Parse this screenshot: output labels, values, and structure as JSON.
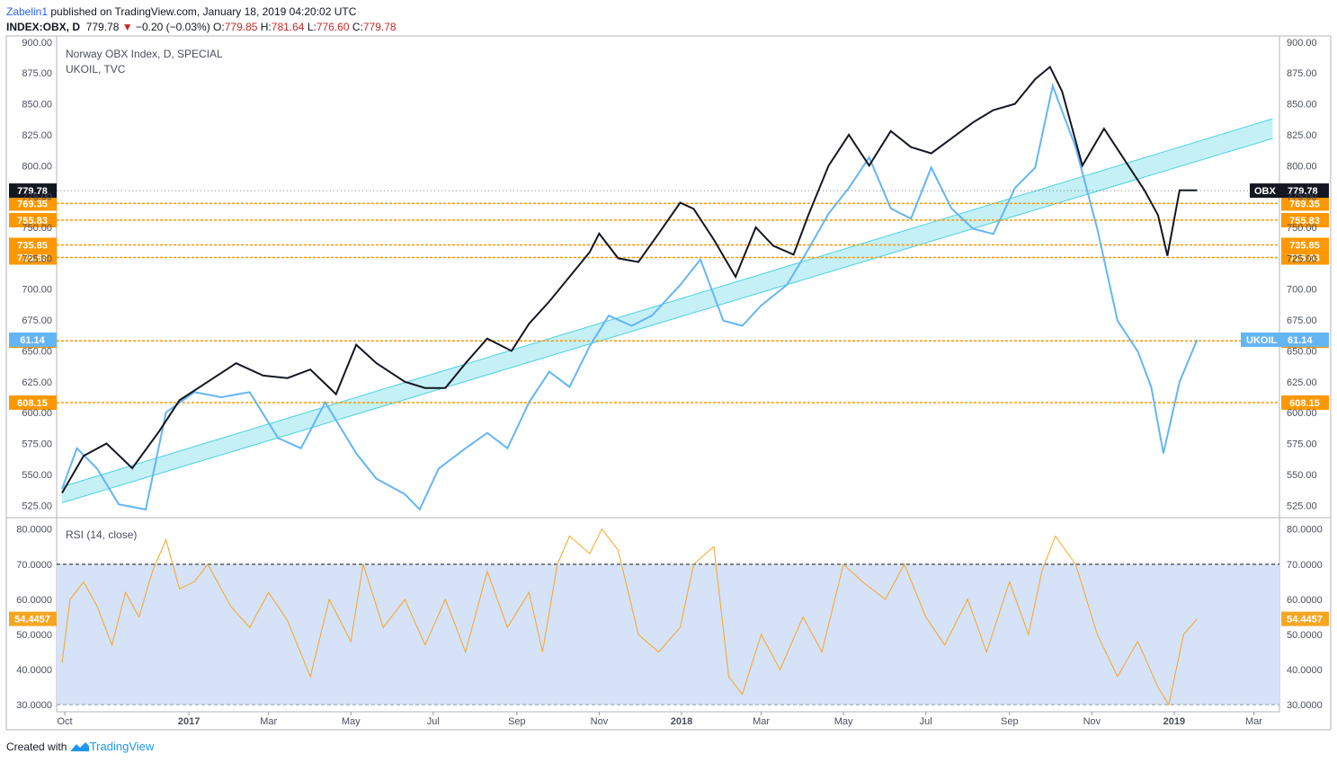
{
  "header": {
    "user": "Zabelin1",
    "published_text": "published on TradingView.com, January 18, 2019 04:20:02 UTC",
    "symbol": "INDEX:OBX, D",
    "last": "779.78",
    "change_arrow": "▼",
    "change": "−0.20 (−0.03%)",
    "o_label": "O:",
    "o_value": "779.85",
    "h_label": "H:",
    "h_value": "781.64",
    "l_label": "L:",
    "l_value": "776.60",
    "c_label": "C:",
    "c_value": "779.78"
  },
  "footer": {
    "created_with": "Created with",
    "brand": "TradingView",
    "logo_icon": "tradingview-logo-icon"
  },
  "colors": {
    "obx": "#131722",
    "obx_down": "#1a237e",
    "ukoil": "#64b5f6",
    "channel": "#4dd0e1",
    "channel_fill": "#b2ebf2",
    "levels": "#ff9800",
    "rsi": "#f5a623",
    "rsi_band": "#d6e2f7"
  },
  "chart_data": [
    {
      "type": "line",
      "title": "Norway OBX Index, D, SPECIAL",
      "subtitle": "UKOIL, TVC",
      "y_range": [
        515,
        905
      ],
      "y_ticks": [
        "525.00",
        "550.00",
        "575.00",
        "600.00",
        "625.00",
        "650.00",
        "675.00",
        "700.00",
        "725.00",
        "750.00",
        "775.00",
        "800.00",
        "825.00",
        "850.00",
        "875.00",
        "900.00"
      ],
      "x_ticks": [
        "Oct",
        "2017",
        "Mar",
        "May",
        "Jul",
        "Sep",
        "Nov",
        "2018",
        "Mar",
        "May",
        "Jul",
        "Sep",
        "Nov",
        "2019",
        "Mar"
      ],
      "series": [
        {
          "name": "OBX",
          "last_value": "779.78",
          "dates": [
            "2016-09-29",
            "2016-10-15",
            "2016-11-01",
            "2016-11-20",
            "2016-12-10",
            "2016-12-25",
            "2017-01-15",
            "2017-02-05",
            "2017-02-25",
            "2017-03-15",
            "2017-04-01",
            "2017-04-20",
            "2017-05-05",
            "2017-05-20",
            "2017-06-10",
            "2017-06-25",
            "2017-07-10",
            "2017-07-25",
            "2017-08-10",
            "2017-08-28",
            "2017-09-10",
            "2017-09-25",
            "2017-10-10",
            "2017-10-25",
            "2017-11-01",
            "2017-11-15",
            "2017-11-30",
            "2017-12-15",
            "2017-12-31",
            "2018-01-10",
            "2018-01-25",
            "2018-02-10",
            "2018-02-25",
            "2018-03-10",
            "2018-03-25",
            "2018-04-05",
            "2018-04-20",
            "2018-05-05",
            "2018-05-20",
            "2018-06-05",
            "2018-06-20",
            "2018-07-05",
            "2018-07-20",
            "2018-08-05",
            "2018-08-20",
            "2018-09-05",
            "2018-09-20",
            "2018-10-01",
            "2018-10-10",
            "2018-10-25",
            "2018-11-10",
            "2018-11-25",
            "2018-12-10",
            "2018-12-20",
            "2018-12-27",
            "2019-01-05",
            "2019-01-18"
          ],
          "values": [
            535,
            565,
            575,
            555,
            585,
            610,
            625,
            640,
            630,
            628,
            635,
            615,
            655,
            640,
            625,
            620,
            620,
            640,
            660,
            650,
            672,
            690,
            710,
            730,
            745,
            725,
            722,
            745,
            770,
            765,
            740,
            710,
            750,
            735,
            728,
            760,
            800,
            825,
            800,
            828,
            815,
            810,
            822,
            835,
            845,
            850,
            870,
            880,
            860,
            800,
            830,
            805,
            780,
            760,
            727,
            780,
            780
          ]
        },
        {
          "name": "UKOIL",
          "last_value": "61.14",
          "dates": [
            "2016-09-29",
            "2016-10-10",
            "2016-10-25",
            "2016-11-10",
            "2016-11-30",
            "2016-12-15",
            "2017-01-05",
            "2017-01-25",
            "2017-02-15",
            "2017-03-08",
            "2017-03-25",
            "2017-04-12",
            "2017-05-05",
            "2017-05-20",
            "2017-06-10",
            "2017-06-21",
            "2017-07-05",
            "2017-07-25",
            "2017-08-10",
            "2017-08-25",
            "2017-09-10",
            "2017-09-25",
            "2017-10-10",
            "2017-10-25",
            "2017-11-08",
            "2017-11-25",
            "2017-12-10",
            "2017-12-31",
            "2018-01-15",
            "2018-02-01",
            "2018-02-15",
            "2018-03-01",
            "2018-03-20",
            "2018-04-05",
            "2018-04-20",
            "2018-05-05",
            "2018-05-20",
            "2018-06-05",
            "2018-06-20",
            "2018-07-05",
            "2018-07-20",
            "2018-08-05",
            "2018-08-20",
            "2018-09-05",
            "2018-09-20",
            "2018-10-03",
            "2018-10-20",
            "2018-11-05",
            "2018-11-20",
            "2018-12-05",
            "2018-12-15",
            "2018-12-24",
            "2019-01-05",
            "2019-01-18"
          ],
          "values": [
            46.5,
            50.5,
            48.5,
            45,
            44.5,
            54,
            56,
            55.5,
            56,
            51.5,
            50.5,
            55,
            50,
            47.5,
            46,
            44.5,
            48.5,
            50.5,
            52,
            50.5,
            55,
            58,
            56.5,
            60.5,
            63.5,
            62.5,
            63.5,
            66.5,
            69,
            63,
            62.5,
            64.5,
            66.5,
            70,
            73.5,
            76,
            79,
            74,
            73,
            78,
            74,
            72,
            71.5,
            76,
            78,
            86,
            80,
            72,
            63,
            60,
            56.5,
            50,
            57,
            61.14
          ]
        }
      ],
      "levels": [
        "769.35",
        "755.83",
        "735.85",
        "725.63",
        "658.18",
        "608.15"
      ],
      "channel": {
        "start": {
          "date": "2016-09-29",
          "lower": 527,
          "upper": 540
        },
        "end": {
          "date": "2019-03-15",
          "lower": 822,
          "upper": 838
        }
      },
      "tags": {
        "obx": "OBX",
        "ukoil": "UKOIL"
      }
    },
    {
      "type": "line",
      "title": "RSI (14, close)",
      "y_range": [
        28,
        83
      ],
      "y_ticks": [
        "30.0000",
        "40.0000",
        "50.0000",
        "60.0000",
        "70.0000",
        "80.0000"
      ],
      "band": [
        30,
        70
      ],
      "last_value": "54.4457",
      "series": [
        {
          "name": "RSI",
          "dates": [
            "2016-09-29",
            "2016-10-05",
            "2016-10-15",
            "2016-10-25",
            "2016-11-05",
            "2016-11-15",
            "2016-11-25",
            "2016-12-05",
            "2016-12-15",
            "2016-12-25",
            "2017-01-05",
            "2017-01-15",
            "2017-02-01",
            "2017-02-15",
            "2017-03-01",
            "2017-03-15",
            "2017-04-01",
            "2017-04-15",
            "2017-05-01",
            "2017-05-10",
            "2017-05-25",
            "2017-06-10",
            "2017-06-25",
            "2017-07-10",
            "2017-07-25",
            "2017-08-10",
            "2017-08-25",
            "2017-09-10",
            "2017-09-20",
            "2017-10-01",
            "2017-10-10",
            "2017-10-25",
            "2017-11-03",
            "2017-11-15",
            "2017-11-30",
            "2017-12-15",
            "2017-12-31",
            "2018-01-10",
            "2018-01-25",
            "2018-02-05",
            "2018-02-15",
            "2018-03-01",
            "2018-03-15",
            "2018-04-01",
            "2018-04-15",
            "2018-05-01",
            "2018-05-15",
            "2018-06-01",
            "2018-06-15",
            "2018-07-01",
            "2018-07-15",
            "2018-08-01",
            "2018-08-15",
            "2018-09-01",
            "2018-09-15",
            "2018-09-25",
            "2018-10-05",
            "2018-10-20",
            "2018-11-05",
            "2018-11-20",
            "2018-12-05",
            "2018-12-20",
            "2018-12-28",
            "2019-01-08",
            "2019-01-18"
          ],
          "values": [
            42,
            60,
            65,
            58,
            47,
            62,
            55,
            68,
            77,
            63,
            65,
            70,
            58,
            52,
            62,
            54,
            38,
            60,
            48,
            70,
            52,
            60,
            47,
            60,
            45,
            68,
            52,
            62,
            45,
            70,
            78,
            73,
            80,
            74,
            50,
            45,
            52,
            70,
            75,
            38,
            33,
            50,
            40,
            55,
            45,
            70,
            65,
            60,
            70,
            55,
            47,
            60,
            45,
            65,
            50,
            68,
            78,
            70,
            50,
            38,
            48,
            35,
            30,
            50,
            54.45
          ]
        }
      ]
    }
  ]
}
